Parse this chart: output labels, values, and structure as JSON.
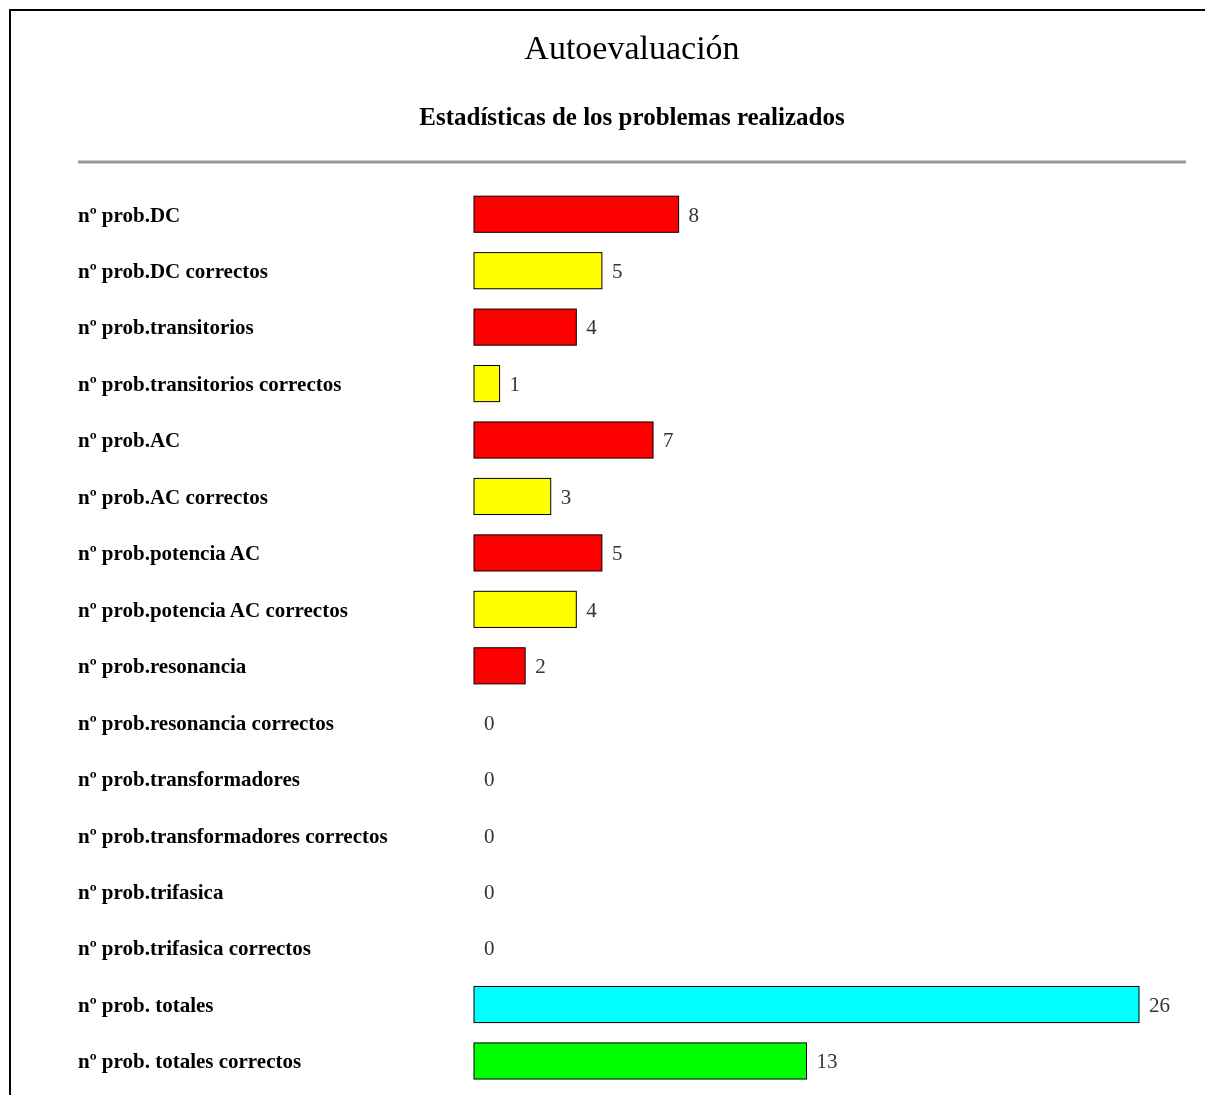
{
  "chart_data": {
    "type": "bar",
    "orientation": "horizontal",
    "title": "Autoevaluación",
    "subtitle": "Estadísticas de los problemas realizados",
    "categories": [
      "nº prob.DC",
      "nº prob.DC correctos",
      "nº prob.transitorios",
      "nº prob.transitorios correctos",
      "nº prob.AC",
      "nº prob.AC correctos",
      "nº prob.potencia AC",
      "nº prob.potencia AC correctos",
      "nº prob.resonancia",
      "nº prob.resonancia correctos",
      "nº prob.transformadores",
      "nº prob.transformadores correctos",
      "nº prob.trifasica",
      "nº prob.trifasica correctos",
      "nº prob. totales",
      "nº prob. totales correctos"
    ],
    "values": [
      8,
      5,
      4,
      1,
      7,
      3,
      5,
      4,
      2,
      0,
      0,
      0,
      0,
      0,
      26,
      13
    ],
    "colors": [
      "#ff0000",
      "#ffff00",
      "#ff0000",
      "#ffff00",
      "#ff0000",
      "#ffff00",
      "#ff0000",
      "#ffff00",
      "#ff0000",
      "#ffff00",
      "#ff0000",
      "#ffff00",
      "#ff0000",
      "#ffff00",
      "#00ffff",
      "#00ff00"
    ],
    "data_labels": true
  }
}
